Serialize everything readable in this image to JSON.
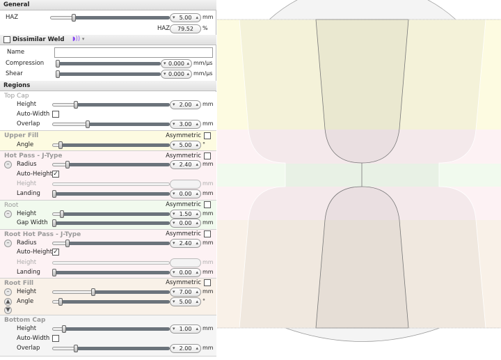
{
  "general": {
    "title": "General",
    "haz": {
      "label": "HAZ",
      "value": "5.00",
      "unit": "mm",
      "level": 0.2
    },
    "haz_pct": {
      "label": "HAZ",
      "value": "79.52",
      "unit": "%"
    }
  },
  "dissimilar": {
    "title": "Dissimilar Weld",
    "checked": false,
    "icon": "sound-wave-icon",
    "name_label": "Name",
    "name_value": "",
    "compression": {
      "label": "Compression",
      "value": "0.000",
      "unit": "mm/µs",
      "level": 0
    },
    "shear": {
      "label": "Shear",
      "value": "0.000",
      "unit": "mm/µs",
      "level": 0
    }
  },
  "regions": {
    "title": "Regions",
    "asymmetric_label": "Asymmetric",
    "top_cap": {
      "title": "Top Cap",
      "height": {
        "label": "Height",
        "value": "2.00",
        "unit": "mm",
        "level": 0.2
      },
      "auto_width": {
        "label": "Auto-Width",
        "checked": false
      },
      "overlap": {
        "label": "Overlap",
        "value": "3.00",
        "unit": "mm",
        "level": 0.3
      },
      "color": "#ffffff"
    },
    "upper_fill": {
      "title": "Upper Fill",
      "angle": {
        "label": "Angle",
        "value": "5.00",
        "unit": "°",
        "level": 0.07
      },
      "color": "#fdfbe1"
    },
    "hot_pass": {
      "title": "Hot Pass - J-Type",
      "radius": {
        "label": "Radius",
        "value": "2.40",
        "unit": "mm",
        "level": 0.13
      },
      "auto_height": {
        "label": "Auto-Height",
        "checked": true
      },
      "height": {
        "label": "Height",
        "value": "",
        "unit": "mm"
      },
      "landing": {
        "label": "Landing",
        "value": "0.00",
        "unit": "mm",
        "level": 0.02
      },
      "color": "#fdf2f4"
    },
    "root": {
      "title": "Root",
      "height": {
        "label": "Height",
        "value": "1.50",
        "unit": "mm",
        "level": 0.08
      },
      "gap_width": {
        "label": "Gap Width",
        "value": "0.00",
        "unit": "mm",
        "level": 0
      },
      "color": "#f1faee"
    },
    "root_hot_pass": {
      "title": "Root Hot Pass - J-Type",
      "radius": {
        "label": "Radius",
        "value": "2.40",
        "unit": "mm",
        "level": 0.13
      },
      "auto_height": {
        "label": "Auto-Height",
        "checked": true
      },
      "height": {
        "label": "Height",
        "value": "",
        "unit": "mm"
      },
      "landing": {
        "label": "Landing",
        "value": "0.00",
        "unit": "mm",
        "level": 0.02
      },
      "color": "#fdf2f4"
    },
    "root_fill": {
      "title": "Root Fill",
      "height": {
        "label": "Height",
        "value": "7.00",
        "unit": "mm",
        "level": 0.35
      },
      "angle": {
        "label": "Angle",
        "value": "5.00",
        "unit": "°",
        "level": 0.07
      },
      "color": "#f9f1e8"
    },
    "bottom_cap": {
      "title": "Bottom Cap",
      "height": {
        "label": "Height",
        "value": "1.00",
        "unit": "mm",
        "level": 0.1
      },
      "auto_width": {
        "label": "Auto-Width",
        "checked": false
      },
      "overlap": {
        "label": "Overlap",
        "value": "2.00",
        "unit": "mm",
        "level": 0.2
      },
      "color": "#f5f5f5"
    }
  }
}
